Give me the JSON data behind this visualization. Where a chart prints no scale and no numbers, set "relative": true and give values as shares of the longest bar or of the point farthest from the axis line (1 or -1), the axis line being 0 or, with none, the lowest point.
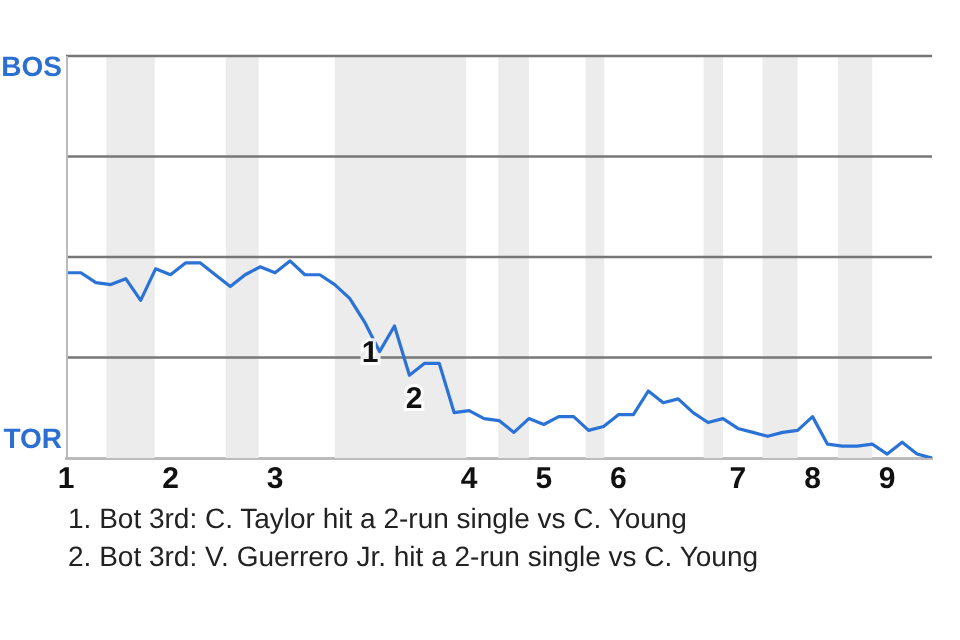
{
  "chart_data": {
    "type": "line",
    "relative": true,
    "categories": [
      "1",
      null,
      null,
      null,
      null,
      null,
      null,
      "2",
      null,
      null,
      null,
      null,
      null,
      null,
      "3",
      null,
      null,
      null,
      null,
      null,
      null,
      null,
      null,
      null,
      null,
      null,
      null,
      "4",
      null,
      null,
      null,
      null,
      "5",
      null,
      null,
      null,
      null,
      "6",
      null,
      null,
      null,
      null,
      null,
      null,
      null,
      "7",
      null,
      null,
      null,
      null,
      "8",
      null,
      null,
      null,
      null,
      "9",
      null,
      null,
      null
    ],
    "series": [
      {
        "color": "#2b72d6",
        "values": [
          0.94,
          0.94,
          0.89,
          0.88,
          0.91,
          0.8,
          0.96,
          0.93,
          0.99,
          0.99,
          0.93,
          0.87,
          0.93,
          0.97,
          0.94,
          1,
          0.93,
          0.93,
          0.88,
          0.81,
          0.69,
          0.54,
          0.67,
          0.42,
          0.48,
          0.48,
          0.23,
          0.24,
          0.2,
          0.19,
          0.13,
          0.2,
          0.17,
          0.21,
          0.21,
          0.14,
          0.16,
          0.22,
          0.22,
          0.34,
          0.28,
          0.3,
          0.23,
          0.18,
          0.2,
          0.15,
          0.13,
          0.11,
          0.13,
          0.14,
          0.21,
          0.07,
          0.06,
          0.06,
          0.07,
          0.02,
          0.08,
          0.02,
          0
        ]
      }
    ],
    "ref_lines": [
      {
        "axis": "y",
        "value": 0.51,
        "color": "#777777"
      },
      {
        "axis": "y",
        "value": 1.02,
        "color": "#777777"
      },
      {
        "axis": "y",
        "value": 1.53,
        "color": "#777777"
      },
      {
        "axis": "y",
        "value": 2.04,
        "color": "#777777"
      }
    ],
    "marker": "none",
    "line_style": "solid",
    "annotations": [
      "BOS",
      "TOR",
      "1",
      "2",
      "1. Bot 3rd: C. Taylor hit a 2-run single vs C. Young",
      "2. Bot 3rd: V. Guerrero Jr. hit a 2-run single vs C. Young"
    ]
  }
}
